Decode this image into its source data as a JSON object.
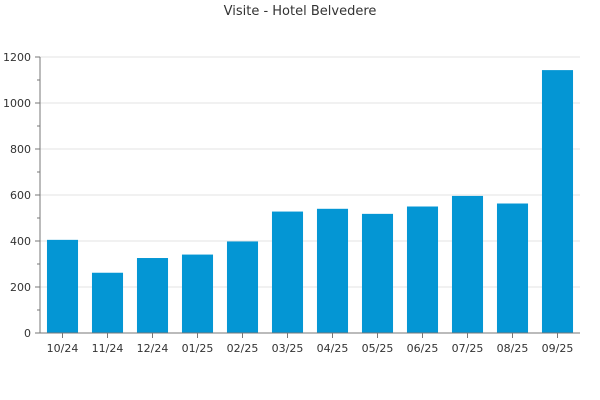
{
  "chart_data": {
    "type": "bar",
    "title": "Visite - Hotel Belvedere",
    "xlabel": "",
    "ylabel": "",
    "categories": [
      "10/24",
      "11/24",
      "12/24",
      "01/25",
      "02/25",
      "03/25",
      "04/25",
      "05/25",
      "06/25",
      "07/25",
      "08/25",
      "09/25"
    ],
    "values": [
      405,
      262,
      326,
      341,
      398,
      528,
      540,
      518,
      550,
      596,
      563,
      1143
    ],
    "ylim": [
      0,
      1200
    ],
    "yticks": [
      0,
      200,
      400,
      600,
      800,
      1000,
      1200
    ],
    "grid": true,
    "legend": "none",
    "bar_color": "#0496D4"
  }
}
